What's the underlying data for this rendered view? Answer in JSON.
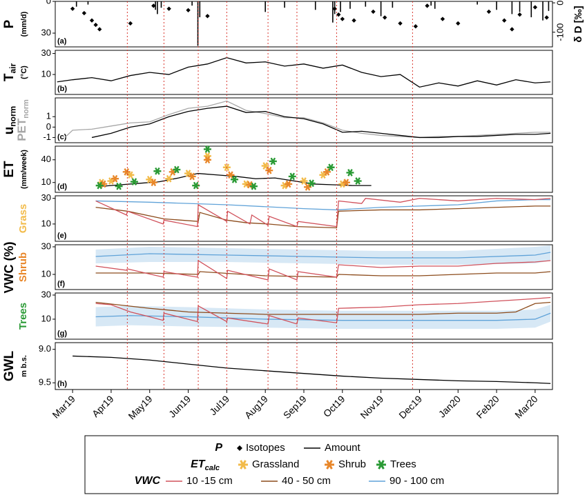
{
  "shared_x": {
    "xlim": [
      -0.45,
      12.45
    ],
    "xticks": [
      {
        "value": 0,
        "label": "Mar19"
      },
      {
        "value": 1,
        "label": "Apr19"
      },
      {
        "value": 2,
        "label": "May19"
      },
      {
        "value": 3,
        "label": "Jun19"
      },
      {
        "value": 4,
        "label": "Jul19"
      },
      {
        "value": 5,
        "label": "Aug19"
      },
      {
        "value": 6,
        "label": "Sep19"
      },
      {
        "value": 7,
        "label": "Oct19"
      },
      {
        "value": 8,
        "label": "Nov19"
      },
      {
        "value": 9,
        "label": "Dec19"
      },
      {
        "value": 10,
        "label": "Jan20"
      },
      {
        "value": 11,
        "label": "Feb20"
      },
      {
        "value": 12,
        "label": "Mar20"
      }
    ],
    "events": [
      1.42,
      2.37,
      3.26,
      4.0,
      5.07,
      5.82,
      6.85,
      8.82
    ],
    "event_color": "#d9342b"
  },
  "shared_y_label": "VWC (%)",
  "chart_data": [
    {
      "type": "bar",
      "label": "(a)",
      "ylabel": "P",
      "yunit": "(mm/d)",
      "ylim": [
        0,
        43
      ],
      "yticks": [
        0,
        30
      ],
      "inverted": true,
      "y2label": "δ D [‰]",
      "y2lim": [
        -150,
        5
      ],
      "y2ticks": [
        0,
        -100
      ],
      "series": [
        {
          "color": "#000000",
          "x": [
            0.1,
            0.4,
            2.15,
            2.2,
            2.3,
            3.1,
            3.25,
            3.3,
            5.0,
            5.5,
            6.3,
            6.75,
            6.8,
            6.95,
            7.2,
            7.6,
            8.0,
            8.3,
            9.3,
            9.4,
            10.5,
            11.0,
            11.4,
            11.6,
            11.9,
            12.2,
            12.35
          ],
          "values": [
            5,
            3,
            8,
            12,
            6,
            4,
            42,
            15,
            10,
            6,
            8,
            20,
            12,
            10,
            7,
            5,
            14,
            6,
            4,
            7,
            3,
            8,
            12,
            10,
            15,
            18,
            9
          ]
        },
        {
          "type": "scatter",
          "marker": "diamond",
          "axis": "y2",
          "color": "#000000",
          "x": [
            0,
            0.3,
            0.5,
            0.6,
            0.7,
            1.5,
            2.1,
            2.5,
            3.0,
            3.5,
            6.8,
            6.9,
            7.0,
            7.3,
            7.8,
            8.1,
            8.5,
            8.9,
            9.2,
            9.6,
            10.0,
            10.8,
            11.2,
            11.4,
            11.6,
            12.0,
            12.3
          ],
          "values": [
            -20,
            -35,
            -60,
            -75,
            -90,
            -70,
            -10,
            -20,
            -25,
            -45,
            -20,
            -40,
            -55,
            -60,
            -30,
            -50,
            -70,
            -80,
            -10,
            -55,
            -70,
            -30,
            -60,
            -90,
            -40,
            -15,
            -50
          ]
        }
      ]
    },
    {
      "type": "line",
      "label": "(b)",
      "ylabel": "T",
      "ylabel_sub": "air",
      "yunit": "(°C)",
      "ylim": [
        -9,
        33
      ],
      "yticks": [
        10,
        30
      ],
      "series": [
        {
          "color": "#000000",
          "x": [
            -0.4,
            0,
            0.5,
            1,
            1.5,
            2,
            2.5,
            3,
            3.5,
            4,
            4.5,
            5,
            5.5,
            6,
            6.5,
            7,
            7.5,
            8,
            8.5,
            9,
            9.5,
            10,
            10.5,
            11,
            11.5,
            12,
            12.4
          ],
          "values": [
            3,
            5,
            7,
            4,
            9,
            12,
            10,
            17,
            20,
            26,
            21,
            22,
            18,
            20,
            16,
            19,
            12,
            8,
            10,
            -2,
            2,
            -1,
            4,
            0,
            5,
            2,
            3
          ]
        }
      ]
    },
    {
      "type": "line",
      "label": "(c)",
      "ylabel": "u",
      "ylabel_sub": "norm",
      "ylabel2": "PET",
      "ylabel2_sub": "norm",
      "ylabel2_color": "#a6a6a6",
      "ylim": [
        -1.5,
        2.8
      ],
      "yticks": [
        -1,
        0,
        1
      ],
      "series": [
        {
          "color": "#a6a6a6",
          "x": [
            -0.2,
            0,
            0.5,
            1,
            1.5,
            2,
            2.5,
            3,
            3.5,
            4,
            4.5,
            5,
            5.5,
            6,
            6.5,
            7,
            7.5,
            8,
            8.5,
            9,
            9.5,
            10,
            10.5,
            11,
            11.5,
            12,
            12.4
          ],
          "values": [
            -1,
            -0.3,
            -0.2,
            0.1,
            0.4,
            0.5,
            1.2,
            1.8,
            2.0,
            2.5,
            1.6,
            1.3,
            0.9,
            0.9,
            0.4,
            -0.3,
            -0.6,
            -0.8,
            -0.9,
            -1.0,
            -0.9,
            -0.9,
            -0.8,
            -0.7,
            -0.6,
            -0.5,
            -0.5
          ]
        },
        {
          "color": "#000000",
          "x": [
            0.5,
            1,
            1.5,
            2,
            2.5,
            3,
            3.5,
            4,
            4.5,
            5,
            5.5,
            6,
            6.5,
            7,
            7.5,
            8,
            8.5,
            9,
            9.5,
            10,
            10.5,
            11,
            11.5,
            12,
            12.4
          ],
          "values": [
            -1,
            -0.6,
            0,
            0.3,
            1.0,
            1.5,
            1.8,
            2.0,
            1.4,
            1.5,
            1.0,
            0.8,
            0.3,
            -0.5,
            -0.4,
            -0.6,
            -0.8,
            -1.0,
            -1.0,
            -0.9,
            -0.9,
            -0.8,
            -0.7,
            -0.7,
            -0.6
          ]
        }
      ]
    },
    {
      "type": "scatter",
      "label": "(d)",
      "ylabel": "ET",
      "yunit": "(mm/week)",
      "ylim": [
        -3,
        58
      ],
      "yticks": [
        10,
        40
      ],
      "series": [
        {
          "type": "line",
          "color": "#000000",
          "x": [
            0.75,
            1.25,
            1.75,
            2.25,
            2.75,
            3.25,
            3.75,
            4.25,
            4.75,
            5.25,
            5.75,
            6.25,
            6.75,
            7.25,
            7.75
          ],
          "values": [
            5,
            7,
            9,
            11,
            16,
            22,
            20,
            18,
            15,
            16,
            12,
            8,
            7,
            6,
            6
          ]
        },
        {
          "marker": "star",
          "color": "#f2bb4a",
          "x": [
            0.75,
            1,
            1.5,
            2,
            2.5,
            3,
            3.5,
            4,
            4.5,
            5,
            5.5,
            6,
            6.5,
            7
          ],
          "values": [
            10,
            12,
            20,
            14,
            15,
            22,
            45,
            30,
            8,
            32,
            6,
            12,
            20,
            8
          ]
        },
        {
          "marker": "star",
          "color": "#e8872a",
          "x": [
            0.8,
            1.1,
            1.4,
            2.1,
            2.6,
            3.1,
            3.5,
            4.1,
            4.6,
            5.1,
            5.6,
            6.1,
            6.6,
            7.1
          ],
          "values": [
            8,
            15,
            24,
            10,
            24,
            18,
            40,
            20,
            7,
            26,
            8,
            4,
            24,
            10
          ]
        },
        {
          "marker": "star",
          "color": "#2a9a35",
          "x": [
            0.7,
            1.2,
            1.6,
            2.2,
            2.7,
            3.2,
            3.5,
            4.2,
            4.7,
            5.2,
            5.7,
            6.2,
            6.7,
            7.2,
            7.4
          ],
          "values": [
            6,
            5,
            11,
            25,
            27,
            6,
            54,
            14,
            5,
            38,
            18,
            9,
            30,
            23,
            12
          ]
        }
      ]
    },
    {
      "type": "line",
      "label": "(e)",
      "ylabel": "Grass",
      "ylabel_color": "#f2bb4a",
      "ylim": [
        -3.5,
        32
      ],
      "yticks": [
        10,
        30
      ],
      "series": [
        {
          "color": "#5fa2d8",
          "x": [
            0.6,
            2,
            4,
            6,
            6.85,
            8,
            9,
            10,
            11,
            12,
            12.4
          ],
          "values": [
            28,
            27,
            25,
            22,
            21,
            23,
            24,
            25,
            28,
            29,
            29
          ]
        },
        {
          "color": "#8b4a1a",
          "x": [
            0.6,
            1.42,
            2.37,
            3.26,
            3.3,
            4,
            4.5,
            5.07,
            5.82,
            6.85,
            6.9,
            8,
            9,
            10,
            11,
            12,
            12.4
          ],
          "values": [
            23,
            20,
            14,
            12,
            19,
            13,
            11,
            10,
            8,
            7,
            20,
            21,
            21,
            22,
            23,
            24,
            24
          ]
        },
        {
          "color": "#d0505a",
          "x": [
            0.6,
            1.4,
            1.42,
            2.35,
            2.37,
            3.24,
            3.26,
            4.0,
            4.02,
            4.6,
            4.65,
            5.07,
            5.1,
            5.82,
            5.85,
            6.85,
            6.9,
            7.5,
            7.6,
            8.5,
            9,
            10,
            11,
            12,
            12.4
          ],
          "values": [
            28,
            17,
            20,
            10,
            13,
            8,
            25,
            12,
            20,
            10,
            17,
            9,
            16,
            8,
            12,
            8,
            28,
            26,
            30,
            27,
            30,
            28,
            30,
            29,
            30
          ]
        }
      ]
    },
    {
      "type": "line",
      "label": "(f)",
      "ylabel": "Shrub",
      "ylabel_color": "#e8872a",
      "ylim": [
        -1,
        31.5
      ],
      "yticks": [
        10,
        30
      ],
      "series": [
        {
          "color": "#5fa2d8",
          "x": [
            0.6,
            2,
            4,
            6,
            8,
            10,
            12,
            12.4
          ],
          "values": [
            23,
            25,
            24,
            23,
            22,
            22,
            24,
            26
          ],
          "lower": [
            18,
            19,
            19,
            18,
            17,
            17,
            18,
            20
          ],
          "upper": [
            28,
            30,
            29,
            28,
            27,
            27,
            30,
            31
          ]
        },
        {
          "color": "#8b4a1a",
          "x": [
            0.6,
            2,
            3.26,
            3.3,
            5,
            6.85,
            6.9,
            8,
            9,
            10,
            11,
            12,
            12.4
          ],
          "values": [
            11,
            11,
            10,
            12,
            9,
            8,
            10,
            9,
            9,
            10,
            11,
            11,
            12
          ]
        },
        {
          "color": "#d0505a",
          "x": [
            0.6,
            1.4,
            1.42,
            2.35,
            2.37,
            3.24,
            3.26,
            4.0,
            4.02,
            5.07,
            5.1,
            5.82,
            5.85,
            6.85,
            6.9,
            8,
            9,
            10,
            11,
            12,
            12.4
          ],
          "values": [
            16,
            13,
            14,
            8,
            12,
            8,
            20,
            7,
            13,
            6,
            14,
            6,
            12,
            8,
            17,
            15,
            16,
            16,
            18,
            19,
            20
          ]
        }
      ]
    },
    {
      "type": "line",
      "label": "(g)",
      "ylabel": "Trees",
      "ylabel_color": "#2a9a35",
      "ylim": [
        -6.6,
        31.7
      ],
      "yticks": [
        10,
        30
      ],
      "series": [
        {
          "color": "#5fa2d8",
          "x": [
            0.6,
            1.5,
            3,
            5,
            7,
            9,
            11,
            12,
            12.4
          ],
          "values": [
            12,
            13,
            12,
            10,
            9,
            9,
            9,
            10,
            15
          ],
          "lower": [
            4,
            5,
            4,
            3,
            2,
            2,
            2,
            3,
            8
          ],
          "upper": [
            20,
            21,
            20,
            18,
            17,
            17,
            17,
            18,
            22
          ]
        },
        {
          "color": "#8b4a1a",
          "x": [
            0.6,
            2,
            3,
            4,
            5,
            7,
            9,
            10,
            11,
            11.5,
            12,
            12.4
          ],
          "values": [
            24,
            19,
            16,
            15,
            14,
            14,
            14,
            15,
            15,
            16,
            23,
            24
          ]
        },
        {
          "color": "#d0505a",
          "x": [
            0.6,
            1,
            1.5,
            2,
            2.35,
            2.37,
            3.24,
            3.26,
            4,
            4.02,
            5.07,
            5.1,
            5.82,
            5.85,
            6.85,
            6.9,
            8,
            9,
            10,
            11,
            12,
            12.4
          ],
          "values": [
            23,
            22,
            16,
            12,
            9,
            15,
            8,
            21,
            8,
            11,
            6,
            13,
            6,
            11,
            7,
            19,
            20,
            22,
            23,
            25,
            27,
            28
          ]
        }
      ]
    },
    {
      "type": "line",
      "label": "(h)",
      "ylabel": "GWL",
      "yunit": "m b.s.",
      "ylim": [
        8.9,
        9.6
      ],
      "inverted": true,
      "yticks": [
        {
          "value": 9,
          "label": "9.0"
        },
        9.5
      ],
      "series": [
        {
          "color": "#000000",
          "x": [
            0,
            1,
            2,
            3,
            4,
            5,
            6,
            7,
            8,
            9,
            10,
            11,
            12,
            12.4
          ],
          "values": [
            9.1,
            9.12,
            9.16,
            9.22,
            9.28,
            9.32,
            9.36,
            9.4,
            9.43,
            9.45,
            9.47,
            9.48,
            9.5,
            9.51
          ]
        }
      ]
    }
  ],
  "legend": {
    "rows": [
      {
        "title": "P",
        "entries": [
          {
            "label": "Isotopes",
            "marker": "diamond",
            "color": "#000000"
          },
          {
            "label": "Amount",
            "marker": "line",
            "color": "#000000"
          }
        ]
      },
      {
        "title": "ET",
        "title_sub": "calc",
        "entries": [
          {
            "label": "Grassland",
            "marker": "star",
            "color": "#f2bb4a"
          },
          {
            "label": "Shrub",
            "marker": "star",
            "color": "#e8872a"
          },
          {
            "label": "Trees",
            "marker": "star",
            "color": "#2a9a35"
          }
        ]
      },
      {
        "title": "VWC",
        "entries": [
          {
            "label": "10 -15 cm",
            "marker": "line",
            "color": "#d0505a"
          },
          {
            "label": "40 - 50 cm",
            "marker": "line",
            "color": "#8b4a1a"
          },
          {
            "label": "90 - 100 cm",
            "marker": "line",
            "color": "#5fa2d8"
          }
        ]
      }
    ]
  }
}
